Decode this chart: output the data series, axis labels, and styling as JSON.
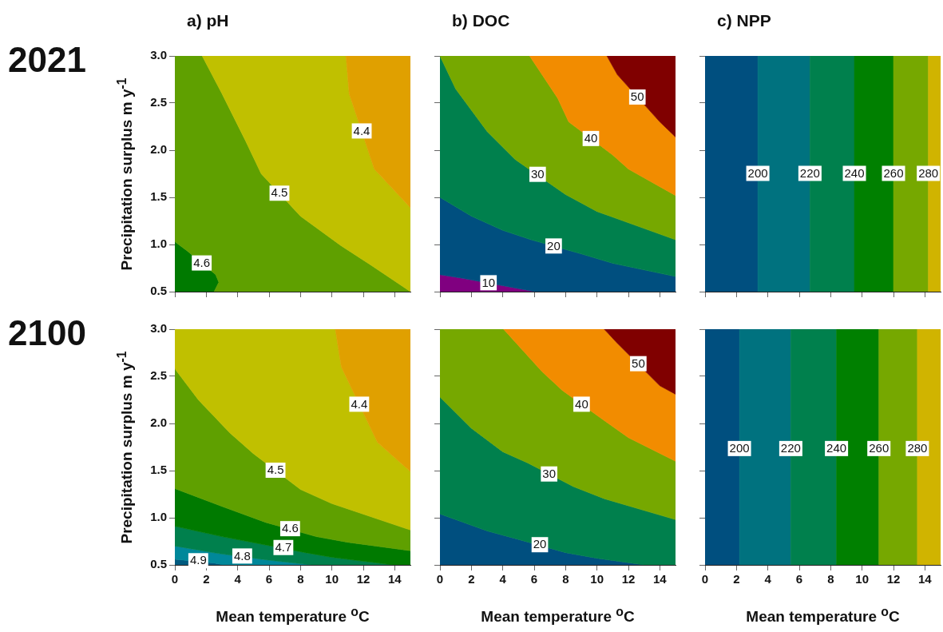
{
  "chart_data": [
    {
      "type": "area",
      "title": "a) pH",
      "subtitle": "2021",
      "ylabel": "Precipitation surplus m y$^{-1}$",
      "xlim": [
        0,
        15
      ],
      "ylim": [
        0.5,
        3
      ],
      "xticks": [
        {
          "value": 0,
          "label": null
        },
        {
          "value": 2,
          "label": null
        },
        {
          "value": 4,
          "label": null
        },
        {
          "value": 6,
          "label": null
        },
        {
          "value": 8,
          "label": null
        },
        {
          "value": 10,
          "label": null
        },
        {
          "value": 12,
          "label": null
        },
        {
          "value": 14,
          "label": null
        }
      ],
      "yticks": [
        {
          "value": 0.5,
          "label": "0.5"
        },
        {
          "value": 1,
          "label": "1.0"
        },
        {
          "value": 1.5,
          "label": "1.5"
        },
        {
          "value": 2,
          "label": "2.0"
        },
        {
          "value": 2.5,
          "label": "2.5"
        },
        {
          "value": 3,
          "label": "3.0"
        }
      ],
      "tick_labels": "y",
      "series": [
        {
          "color": "#007a00",
          "x": [
            0,
            0,
            0.8,
            2.6,
            2.8,
            2.5
          ],
          "values": [
            0.5,
            1.03,
            0.93,
            0.68,
            0.6,
            0.5
          ]
        },
        {
          "color": "#5fa000",
          "x": [
            0,
            1.74,
            3,
            4.5,
            5.5,
            8,
            10.56,
            12.5,
            15,
            2.5,
            2.8,
            2.6,
            0.8,
            0
          ],
          "values": [
            3,
            3,
            2.6,
            2.1,
            1.75,
            1.3,
            0.99,
            0.78,
            0.5,
            0.5,
            0.6,
            0.68,
            0.93,
            1.03
          ]
        },
        {
          "color": "#c0c000",
          "x": [
            1.74,
            10.9,
            11.1,
            12.7,
            15,
            15,
            12.5,
            10.56,
            8,
            5.5,
            4.5,
            3
          ],
          "values": [
            3,
            3,
            2.6,
            1.8,
            1.39,
            0.5,
            0.78,
            0.99,
            1.3,
            1.75,
            2.1,
            2.6
          ]
        },
        {
          "color": "#e0a000",
          "x": [
            10.9,
            15,
            15,
            12.7,
            11.1
          ],
          "values": [
            3,
            3,
            1.39,
            1.8,
            2.6
          ]
        }
      ],
      "annotations": [
        {
          "text": "4.6",
          "x": 1.71,
          "y": 0.8
        },
        {
          "text": "4.5",
          "x": 6.66,
          "y": 1.54
        },
        {
          "text": "4.4",
          "x": 11.9,
          "y": 2.2
        }
      ]
    },
    {
      "type": "area",
      "title": "b) DOC",
      "xlim": [
        0,
        15
      ],
      "ylim": [
        0.5,
        3
      ],
      "xticks": [
        {
          "value": 0,
          "label": null
        },
        {
          "value": 2,
          "label": null
        },
        {
          "value": 4,
          "label": null
        },
        {
          "value": 6,
          "label": null
        },
        {
          "value": 8,
          "label": null
        },
        {
          "value": 10,
          "label": null
        },
        {
          "value": 12,
          "label": null
        },
        {
          "value": 14,
          "label": null
        }
      ],
      "yticks": [
        {
          "value": 0.5,
          "label": null
        },
        {
          "value": 1,
          "label": null
        },
        {
          "value": 1.5,
          "label": null
        },
        {
          "value": 2,
          "label": null
        },
        {
          "value": 2.5,
          "label": null
        },
        {
          "value": 3,
          "label": null
        }
      ],
      "tick_labels": false,
      "series": [
        {
          "color": "#800080",
          "x": [
            0,
            0,
            1.5,
            6.05
          ],
          "values": [
            0.5,
            0.68,
            0.64,
            0.5
          ]
        },
        {
          "color": "#004f7f",
          "x": [
            0,
            0,
            2,
            4,
            5.8,
            9,
            11,
            15,
            15,
            6.05,
            1.5
          ],
          "values": [
            0.68,
            1.5,
            1.3,
            1.15,
            1.05,
            0.9,
            0.8,
            0.66,
            0.5,
            0.5,
            0.64
          ]
        },
        {
          "color": "#00804d",
          "x": [
            0,
            0,
            1,
            3,
            4.8,
            8,
            10,
            15,
            15,
            11,
            9,
            5.8,
            4,
            2
          ],
          "values": [
            1.5,
            3,
            2.65,
            2.2,
            1.9,
            1.53,
            1.35,
            1.05,
            0.66,
            0.8,
            0.9,
            1.05,
            1.15,
            1.3
          ]
        },
        {
          "color": "#76a800",
          "x": [
            0,
            5.71,
            7.5,
            8.2,
            11,
            12,
            15,
            15,
            10,
            8,
            4.8,
            3,
            1
          ],
          "values": [
            3,
            3,
            2.55,
            2.3,
            1.95,
            1.8,
            1.52,
            1.05,
            1.35,
            1.53,
            1.9,
            2.2,
            2.65
          ]
        },
        {
          "color": "#f28c00",
          "x": [
            5.71,
            10.63,
            11.3,
            14,
            15,
            15,
            12,
            11,
            8.2,
            7.5
          ],
          "values": [
            3,
            3,
            2.8,
            2.3,
            2.14,
            1.52,
            1.8,
            1.95,
            2.3,
            2.55
          ]
        },
        {
          "color": "#800000",
          "x": [
            10.63,
            15,
            15,
            14,
            11.3
          ],
          "values": [
            3,
            3,
            2.14,
            2.3,
            2.8
          ]
        }
      ],
      "annotations": [
        {
          "text": "10",
          "x": 3.09,
          "y": 0.59
        },
        {
          "text": "20",
          "x": 7.24,
          "y": 0.98
        },
        {
          "text": "30",
          "x": 6.22,
          "y": 1.74
        },
        {
          "text": "40",
          "x": 9.61,
          "y": 2.12
        },
        {
          "text": "50",
          "x": 12.57,
          "y": 2.56
        }
      ]
    },
    {
      "type": "area",
      "title": "c) NPP",
      "xlim": [
        0,
        15
      ],
      "ylim": [
        0.5,
        3
      ],
      "xticks": [
        {
          "value": 0,
          "label": null
        },
        {
          "value": 2,
          "label": null
        },
        {
          "value": 4,
          "label": null
        },
        {
          "value": 6,
          "label": null
        },
        {
          "value": 8,
          "label": null
        },
        {
          "value": 10,
          "label": null
        },
        {
          "value": 12,
          "label": null
        },
        {
          "value": 14,
          "label": null
        }
      ],
      "yticks": [
        {
          "value": 0.5,
          "label": null
        },
        {
          "value": 1,
          "label": null
        },
        {
          "value": 1.5,
          "label": null
        },
        {
          "value": 2,
          "label": null
        },
        {
          "value": 2.5,
          "label": null
        },
        {
          "value": 3,
          "label": null
        }
      ],
      "tick_labels": false,
      "series": [
        {
          "color": "#004f7f",
          "x": [
            0,
            0,
            3.36,
            3.36
          ],
          "values": [
            0.5,
            3,
            3,
            0.5
          ]
        },
        {
          "color": "#00727f",
          "x": [
            3.36,
            3.36,
            6.68,
            6.68
          ],
          "values": [
            0.5,
            3,
            3,
            0.5
          ]
        },
        {
          "color": "#00804d",
          "x": [
            6.68,
            6.68,
            9.51,
            9.51
          ],
          "values": [
            0.5,
            3,
            3,
            0.5
          ]
        },
        {
          "color": "#008000",
          "x": [
            9.51,
            9.51,
            12,
            12
          ],
          "values": [
            0.5,
            3,
            3,
            0.5
          ]
        },
        {
          "color": "#76a800",
          "x": [
            12,
            12,
            14.22,
            14.22
          ],
          "values": [
            0.5,
            3,
            3,
            0.5
          ]
        },
        {
          "color": "#d0b400",
          "x": [
            14.22,
            14.22,
            15,
            15
          ],
          "values": [
            0.5,
            3,
            3,
            0.5
          ]
        }
      ],
      "annotations": [
        {
          "text": "200",
          "x": 3.36,
          "y": 1.75
        },
        {
          "text": "220",
          "x": 6.68,
          "y": 1.75
        },
        {
          "text": "240",
          "x": 9.51,
          "y": 1.75
        },
        {
          "text": "260",
          "x": 12,
          "y": 1.75
        },
        {
          "text": "280",
          "x": 14.22,
          "y": 1.75
        }
      ]
    },
    {
      "type": "area",
      "subtitle": "2100",
      "ylabel": "Precipitation surplus m y$^{-1}$",
      "xlabel": "Mean temperature $^{o}$C",
      "xlim": [
        0,
        15
      ],
      "ylim": [
        0.5,
        3
      ],
      "xticks": [
        0,
        2,
        4,
        6,
        8,
        10,
        12,
        14
      ],
      "yticks": [
        {
          "value": 0.5,
          "label": "0.5"
        },
        {
          "value": 1,
          "label": "1.0"
        },
        {
          "value": 1.5,
          "label": "1.5"
        },
        {
          "value": 2,
          "label": "2.0"
        },
        {
          "value": 2.5,
          "label": "2.5"
        },
        {
          "value": 3,
          "label": "3.0"
        }
      ],
      "series": [
        {
          "color": "#005a7f",
          "x": [
            0,
            0,
            2.5,
            3.1
          ],
          "values": [
            0.5,
            0.56,
            0.52,
            0.5
          ]
        },
        {
          "color": "#00889a",
          "x": [
            0,
            0,
            2.8,
            5.5,
            6.5,
            8.7,
            3.1,
            2.5
          ],
          "values": [
            0.56,
            0.7,
            0.62,
            0.56,
            0.54,
            0.5,
            0.5,
            0.52
          ]
        },
        {
          "color": "#00804d",
          "x": [
            0,
            0,
            3,
            5.5,
            8.3,
            10,
            13.9,
            8.7,
            6.5,
            5.5,
            2.8
          ],
          "values": [
            0.7,
            0.91,
            0.8,
            0.72,
            0.63,
            0.58,
            0.5,
            0.5,
            0.54,
            0.56,
            0.62
          ]
        },
        {
          "color": "#007a00",
          "x": [
            0,
            0,
            3,
            5.8,
            9,
            11,
            15,
            15,
            13.9,
            10,
            8.3,
            5.5,
            3
          ],
          "values": [
            0.91,
            1.31,
            1.12,
            0.95,
            0.8,
            0.74,
            0.65,
            0.5,
            0.5,
            0.58,
            0.63,
            0.72,
            0.8
          ]
        },
        {
          "color": "#5fa000",
          "x": [
            0,
            0,
            1.5,
            3.5,
            5,
            8,
            10,
            15,
            15,
            11,
            9,
            5.8,
            3
          ],
          "values": [
            1.31,
            2.58,
            2.25,
            1.9,
            1.68,
            1.3,
            1.15,
            0.87,
            0.65,
            0.74,
            0.8,
            0.95,
            1.12
          ]
        },
        {
          "color": "#c0c000",
          "x": [
            0,
            0,
            10.22,
            10.6,
            12.9,
            15,
            15,
            10,
            8,
            5,
            3.5,
            1.5
          ],
          "values": [
            2.58,
            3,
            3,
            2.6,
            1.8,
            1.49,
            0.87,
            1.15,
            1.3,
            1.68,
            1.9,
            2.25
          ]
        },
        {
          "color": "#e0a000",
          "x": [
            10.22,
            15,
            15,
            12.9,
            10.6
          ],
          "values": [
            3,
            3,
            1.49,
            1.8,
            2.6
          ]
        }
      ],
      "annotations": [
        {
          "text": "4.9",
          "x": 1.49,
          "y": 0.54
        },
        {
          "text": "4.8",
          "x": 4.29,
          "y": 0.59
        },
        {
          "text": "4.7",
          "x": 6.91,
          "y": 0.68
        },
        {
          "text": "4.6",
          "x": 7.34,
          "y": 0.88
        },
        {
          "text": "4.5",
          "x": 6.41,
          "y": 1.5
        },
        {
          "text": "4.4",
          "x": 11.74,
          "y": 2.2
        }
      ]
    },
    {
      "type": "area",
      "xlabel": "Mean temperature $^{o}$C",
      "xlim": [
        0,
        15
      ],
      "ylim": [
        0.5,
        3
      ],
      "xticks": [
        0,
        2,
        4,
        6,
        8,
        10,
        12,
        14
      ],
      "yticks": [
        {
          "value": 0.5,
          "label": null
        },
        {
          "value": 1,
          "label": null
        },
        {
          "value": 1.5,
          "label": null
        },
        {
          "value": 2,
          "label": null
        },
        {
          "value": 2.5,
          "label": null
        },
        {
          "value": 3,
          "label": null
        }
      ],
      "tick_labels": "x",
      "series": [
        {
          "color": "#004f7f",
          "x": [
            0,
            0,
            3,
            5,
            8,
            10,
            13
          ],
          "values": [
            0.5,
            1.04,
            0.86,
            0.77,
            0.63,
            0.57,
            0.5
          ]
        },
        {
          "color": "#00804d",
          "x": [
            0,
            0,
            2,
            4,
            5.6,
            8.5,
            10.5,
            15,
            15,
            13,
            10,
            8,
            5,
            3
          ],
          "values": [
            1.04,
            2.28,
            1.95,
            1.7,
            1.58,
            1.33,
            1.2,
            0.98,
            0.5,
            0.5,
            0.57,
            0.63,
            0.77,
            0.86
          ]
        },
        {
          "color": "#76a800",
          "x": [
            0,
            0,
            4.05,
            6.5,
            7.8,
            10.3,
            12,
            15,
            15,
            10.5,
            8.5,
            5.6,
            4,
            2
          ],
          "values": [
            2.28,
            3,
            3,
            2.55,
            2.35,
            2.05,
            1.85,
            1.6,
            0.98,
            1.2,
            1.33,
            1.58,
            1.7,
            1.95
          ]
        },
        {
          "color": "#f28c00",
          "x": [
            4.05,
            10.46,
            11.3,
            14,
            15,
            15,
            12,
            10.3,
            7.8,
            6.5
          ],
          "values": [
            3,
            3,
            2.85,
            2.4,
            2.31,
            1.6,
            1.85,
            2.05,
            2.35,
            2.55
          ]
        },
        {
          "color": "#800000",
          "x": [
            10.46,
            15,
            15,
            14,
            11.3
          ],
          "values": [
            3,
            3,
            2.31,
            2.4,
            2.85
          ]
        }
      ],
      "annotations": [
        {
          "text": "20",
          "x": 6.36,
          "y": 0.71
        },
        {
          "text": "30",
          "x": 6.95,
          "y": 1.46
        },
        {
          "text": "40",
          "x": 9.02,
          "y": 2.2
        },
        {
          "text": "50",
          "x": 12.63,
          "y": 2.63
        }
      ]
    },
    {
      "type": "area",
      "xlabel": "Mean temperature $^{o}$C",
      "xlim": [
        0,
        15
      ],
      "ylim": [
        0.5,
        3
      ],
      "xticks": [
        0,
        2,
        4,
        6,
        8,
        10,
        12,
        14
      ],
      "yticks": [
        {
          "value": 0.5,
          "label": null
        },
        {
          "value": 1,
          "label": null
        },
        {
          "value": 1.5,
          "label": null
        },
        {
          "value": 2,
          "label": null
        },
        {
          "value": 2.5,
          "label": null
        },
        {
          "value": 3,
          "label": null
        }
      ],
      "tick_labels": "x",
      "series": [
        {
          "color": "#004f7f",
          "x": [
            0,
            0,
            2.19,
            2.19
          ],
          "values": [
            0.5,
            3,
            3,
            0.5
          ]
        },
        {
          "color": "#00727f",
          "x": [
            2.19,
            2.19,
            5.46,
            5.46
          ],
          "values": [
            0.5,
            3,
            3,
            0.5
          ]
        },
        {
          "color": "#00804d",
          "x": [
            5.46,
            5.46,
            8.37,
            8.37
          ],
          "values": [
            0.5,
            3,
            3,
            0.5
          ]
        },
        {
          "color": "#008000",
          "x": [
            8.37,
            8.37,
            11.07,
            11.07
          ],
          "values": [
            0.5,
            3,
            3,
            0.5
          ]
        },
        {
          "color": "#76a800",
          "x": [
            11.07,
            11.07,
            13.52,
            13.52
          ],
          "values": [
            0.5,
            3,
            3,
            0.5
          ]
        },
        {
          "color": "#d0b400",
          "x": [
            13.52,
            13.52,
            15,
            15
          ],
          "values": [
            0.5,
            3,
            3,
            0.5
          ]
        }
      ],
      "annotations": [
        {
          "text": "200",
          "x": 2.19,
          "y": 1.73
        },
        {
          "text": "220",
          "x": 5.46,
          "y": 1.73
        },
        {
          "text": "240",
          "x": 8.37,
          "y": 1.73
        },
        {
          "text": "260",
          "x": 11.07,
          "y": 1.73
        },
        {
          "text": "280",
          "x": 13.52,
          "y": 1.73
        }
      ]
    }
  ]
}
